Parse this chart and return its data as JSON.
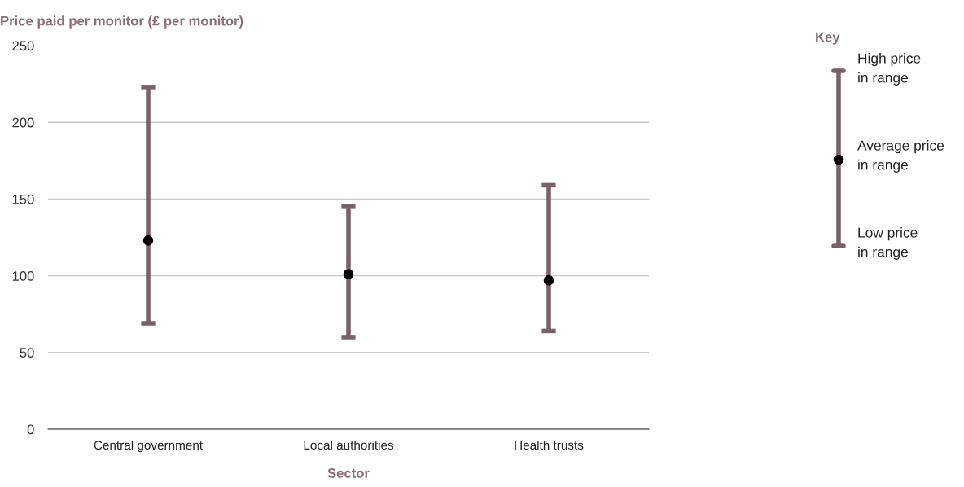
{
  "chart_data": {
    "type": "scatter",
    "ylabel": "Price paid per monitor (£ per monitor)",
    "xlabel": "Sector",
    "categories": [
      "Central government",
      "Local authorities",
      "Health trusts"
    ],
    "series": [
      {
        "color": "#000000",
        "values": [
          123,
          101,
          97
        ],
        "errors": [
          [
            69,
            223
          ],
          [
            60,
            145
          ],
          [
            64,
            159
          ]
        ]
      }
    ],
    "ylim": [
      0,
      250
    ],
    "yticks": [
      0,
      50,
      100,
      150,
      200,
      250
    ],
    "grid": "y",
    "legend": false,
    "marker": "circle",
    "annotations": [
      "Key",
      "High price\nin range",
      "Average price\nin range",
      "Low price\nin range"
    ]
  }
}
